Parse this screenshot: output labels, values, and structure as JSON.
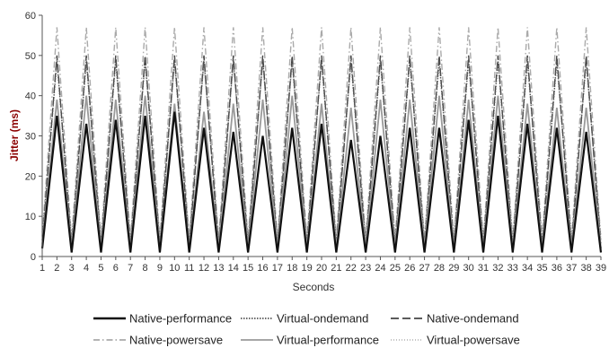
{
  "chart_data": {
    "type": "line",
    "title": "",
    "xlabel": "Seconds",
    "ylabel": "Jitter (ms)",
    "xlim": [
      1,
      39
    ],
    "ylim": [
      0,
      60
    ],
    "xticks": [
      1,
      2,
      3,
      4,
      5,
      6,
      7,
      8,
      9,
      10,
      11,
      12,
      13,
      14,
      15,
      16,
      17,
      18,
      19,
      20,
      21,
      22,
      23,
      24,
      25,
      26,
      27,
      28,
      29,
      30,
      31,
      32,
      33,
      34,
      35,
      36,
      37,
      38,
      39
    ],
    "yticks": [
      0,
      10,
      20,
      30,
      40,
      50,
      60
    ],
    "x": [
      1,
      2,
      3,
      4,
      5,
      6,
      7,
      8,
      9,
      10,
      11,
      12,
      13,
      14,
      15,
      16,
      17,
      18,
      19,
      20,
      21,
      22,
      23,
      24,
      25,
      26,
      27,
      28,
      29,
      30,
      31,
      32,
      33,
      34,
      35,
      36,
      37,
      38,
      39
    ],
    "grid": false,
    "legend_position": "bottom",
    "series": [
      {
        "name": "Native-performance",
        "color": "#111111",
        "dash": "solid",
        "values": [
          2,
          35,
          1,
          33,
          1,
          34,
          1,
          35,
          1,
          36,
          1,
          32,
          1,
          31,
          1,
          30,
          1,
          32,
          1,
          33,
          1,
          29,
          1,
          30,
          1,
          32,
          1,
          32,
          1,
          34,
          1,
          35,
          1,
          33,
          1,
          32,
          1,
          31,
          1
        ]
      },
      {
        "name": "Virtual-ondemand",
        "color": "#555555",
        "dash": "dotted",
        "values": [
          4,
          49,
          3,
          49,
          3,
          49,
          3,
          49,
          3,
          49,
          3,
          49,
          3,
          49,
          3,
          49,
          3,
          49,
          3,
          49,
          3,
          49,
          3,
          49,
          3,
          49,
          3,
          49,
          3,
          49,
          3,
          49,
          3,
          49,
          3,
          49,
          3,
          49,
          3
        ]
      },
      {
        "name": "Native-ondemand",
        "color": "#444444",
        "dash": "dashed",
        "values": [
          3,
          50,
          2,
          50,
          2,
          50,
          2,
          50,
          2,
          50,
          2,
          50,
          2,
          50,
          2,
          50,
          2,
          50,
          2,
          50,
          2,
          50,
          2,
          50,
          2,
          50,
          2,
          50,
          2,
          50,
          2,
          50,
          2,
          50,
          2,
          50,
          2,
          50,
          2
        ]
      },
      {
        "name": "Native-powersave",
        "color": "#aaaaaa",
        "dash": "dashdot",
        "values": [
          5,
          57,
          4,
          57,
          4,
          57,
          4,
          57,
          4,
          57,
          4,
          57,
          4,
          57,
          4,
          57,
          4,
          57,
          4,
          57,
          4,
          57,
          4,
          57,
          4,
          57,
          4,
          57,
          4,
          57,
          4,
          57,
          4,
          57,
          4,
          57,
          4,
          57,
          4
        ]
      },
      {
        "name": "Virtual-performance",
        "color": "#9a9a9a",
        "dash": "solid",
        "values": [
          3,
          39,
          2,
          40,
          2,
          39,
          2,
          40,
          2,
          38,
          2,
          36,
          2,
          38,
          2,
          39,
          2,
          40,
          2,
          38,
          2,
          37,
          2,
          39,
          2,
          39,
          2,
          40,
          2,
          39,
          2,
          40,
          2,
          38,
          2,
          37,
          2,
          37,
          2
        ]
      },
      {
        "name": "Virtual-powersave",
        "color": "#bbbbbb",
        "dash": "fine-dotted",
        "values": [
          6,
          48,
          5,
          48,
          5,
          48,
          5,
          48,
          5,
          48,
          5,
          48,
          5,
          48,
          5,
          48,
          5,
          48,
          5,
          48,
          5,
          48,
          5,
          48,
          5,
          48,
          5,
          48,
          5,
          48,
          5,
          48,
          5,
          48,
          5,
          48,
          5,
          48,
          5
        ]
      }
    ]
  }
}
